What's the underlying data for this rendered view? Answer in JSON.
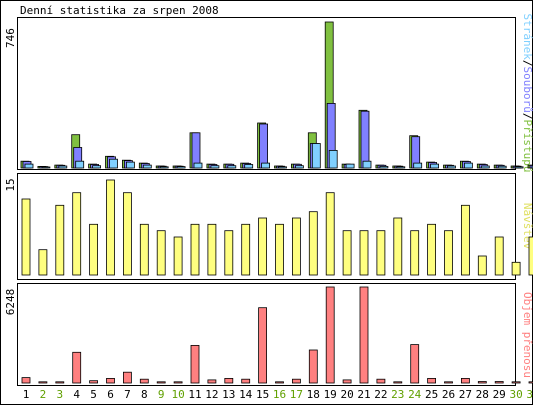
{
  "title": "Denní statistika za srpen 2008",
  "colors": {
    "background": "#ffffff",
    "frame": "#000000",
    "pages": "#80c040",
    "files": "#8080ff",
    "hits": "#80d0ff",
    "visits": "#ffff80",
    "traffic": "#ff8080",
    "weekend_label": "#60a000",
    "weekday_label": "#000000"
  },
  "chart_data": [
    {
      "type": "bar",
      "ylabel": "746",
      "ylim": [
        0,
        746
      ],
      "right_label": {
        "hits": "Stránek",
        "sep1": "/",
        "files": "Souborů",
        "sep2": "/",
        "pages": "Přístupů"
      },
      "categories": [
        "1",
        "2",
        "3",
        "4",
        "5",
        "6",
        "7",
        "8",
        "9",
        "10",
        "11",
        "12",
        "13",
        "14",
        "15",
        "16",
        "17",
        "18",
        "19",
        "20",
        "21",
        "22",
        "23",
        "24",
        "25",
        "26",
        "27",
        "28",
        "29",
        "30",
        "31"
      ],
      "weekend": [
        false,
        true,
        true,
        false,
        false,
        false,
        false,
        false,
        true,
        true,
        false,
        false,
        false,
        false,
        false,
        true,
        true,
        false,
        false,
        false,
        false,
        false,
        true,
        true,
        false,
        false,
        false,
        false,
        false,
        true,
        true
      ],
      "series": [
        {
          "name": "Přístupů",
          "values": [
            35,
            8,
            15,
            170,
            20,
            60,
            40,
            25,
            10,
            10,
            180,
            20,
            20,
            25,
            230,
            10,
            20,
            180,
            746,
            20,
            295,
            15,
            10,
            165,
            30,
            15,
            35,
            20,
            15,
            10,
            15
          ]
        },
        {
          "name": "Souborů",
          "values": [
            33,
            7,
            14,
            105,
            18,
            57,
            38,
            23,
            9,
            9,
            180,
            18,
            19,
            23,
            225,
            9,
            19,
            125,
            330,
            18,
            290,
            14,
            9,
            160,
            28,
            14,
            33,
            18,
            14,
            9,
            14
          ]
        },
        {
          "name": "Stránek",
          "values": [
            20,
            5,
            10,
            35,
            12,
            45,
            30,
            15,
            6,
            7,
            25,
            12,
            12,
            18,
            25,
            6,
            12,
            125,
            90,
            20,
            35,
            8,
            6,
            25,
            20,
            10,
            25,
            10,
            9,
            6,
            10
          ]
        }
      ]
    },
    {
      "type": "bar",
      "ylabel": "15",
      "ylim": [
        0,
        15
      ],
      "right_label": "Návštěv",
      "categories": [
        "1",
        "2",
        "3",
        "4",
        "5",
        "6",
        "7",
        "8",
        "9",
        "10",
        "11",
        "12",
        "13",
        "14",
        "15",
        "16",
        "17",
        "18",
        "19",
        "20",
        "21",
        "22",
        "23",
        "24",
        "25",
        "26",
        "27",
        "28",
        "29",
        "30",
        "31"
      ],
      "series": [
        {
          "name": "Návštěv",
          "values": [
            12,
            4,
            11,
            13,
            8,
            15,
            13,
            8,
            7,
            6,
            8,
            8,
            7,
            8,
            9,
            8,
            9,
            10,
            13,
            7,
            7,
            7,
            9,
            7,
            8,
            7,
            11,
            3,
            6,
            2,
            6
          ]
        }
      ]
    },
    {
      "type": "bar",
      "ylabel": "6248",
      "ylim": [
        0,
        6248
      ],
      "right_label": "Objem přenosu",
      "categories": [
        "1",
        "2",
        "3",
        "4",
        "5",
        "6",
        "7",
        "8",
        "9",
        "10",
        "11",
        "12",
        "13",
        "14",
        "15",
        "16",
        "17",
        "18",
        "19",
        "20",
        "21",
        "22",
        "23",
        "24",
        "25",
        "26",
        "27",
        "28",
        "29",
        "30",
        "31"
      ],
      "series": [
        {
          "name": "Objem přenosu",
          "values": [
            350,
            80,
            80,
            2000,
            150,
            300,
            700,
            250,
            80,
            80,
            2450,
            200,
            300,
            250,
            4900,
            80,
            250,
            2150,
            6248,
            200,
            6248,
            250,
            80,
            2500,
            300,
            80,
            300,
            100,
            100,
            80,
            80
          ]
        }
      ]
    }
  ]
}
